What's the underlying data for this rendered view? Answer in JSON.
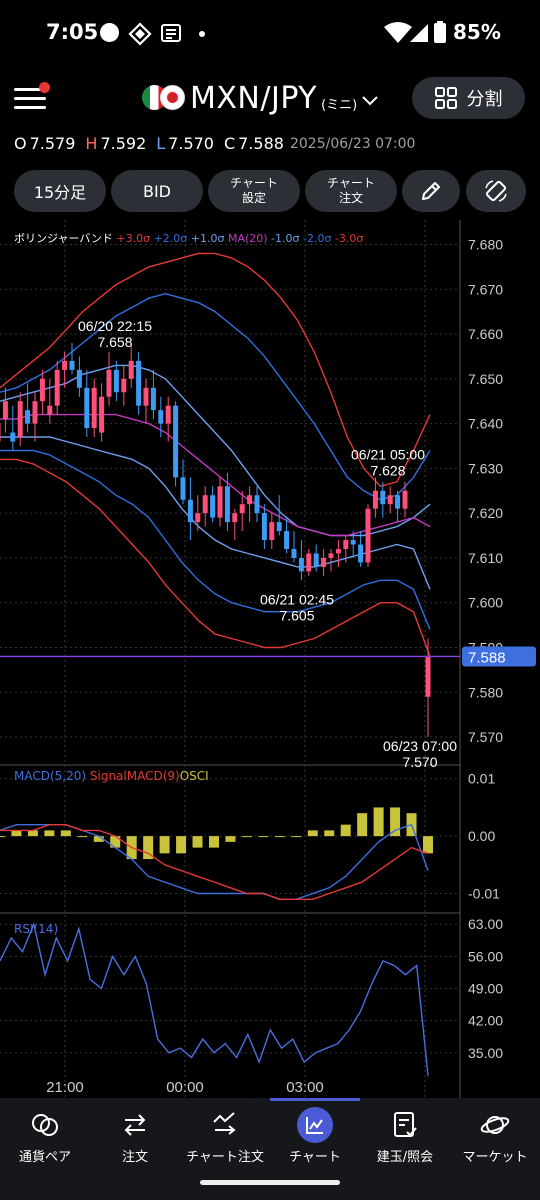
{
  "status_bar": {
    "time": "7:05",
    "battery": "85%"
  },
  "header": {
    "pair": "MXN/JPY",
    "pair_variant": "(ミニ)",
    "split_label": "分割"
  },
  "ohlc": {
    "o_key": "O",
    "o": "7.579",
    "h_key": "H",
    "h": "7.592",
    "l_key": "L",
    "l": "7.570",
    "c_key": "C",
    "c": "7.588",
    "datetime": "2025/06/23 07:00"
  },
  "toolbar": {
    "timeframe": "15分足",
    "price_type": "BID",
    "chart_settings_1": "チャート",
    "chart_settings_2": "設定",
    "chart_order_1": "チャート",
    "chart_order_2": "注文"
  },
  "colors": {
    "bb3": "#e53935",
    "bb2": "#2f6fe0",
    "bb1": "#6ea0f0",
    "ma": "#c238c2",
    "up": "#ff4f7b",
    "down": "#3d9bf5",
    "macd": "#3d6fe0",
    "signal": "#e53935",
    "osci": "#c8c33a",
    "rsi": "#4b6fe0",
    "current": "#8b3fe8",
    "badge": "#3d6fe0"
  },
  "chart_data": [
    {
      "type": "candlestick",
      "title": "ボリンジャーバンド",
      "legend": [
        "+3.0σ",
        "+2.0σ",
        "+1.0σ",
        "MA(20)",
        "-1.0σ",
        "-2.0σ",
        "-3.0σ"
      ],
      "ylim": [
        7.568,
        7.681
      ],
      "yticks": [
        "7.680",
        "7.670",
        "7.660",
        "7.650",
        "7.640",
        "7.630",
        "7.620",
        "7.610",
        "7.600",
        "7.590",
        "7.580",
        "7.570"
      ],
      "xticks": [
        "21:00",
        "00:00",
        "03:00"
      ],
      "current_price": "7.588",
      "candles": [
        [
          7.636,
          7.642,
          7.632,
          7.64
        ],
        [
          7.641,
          7.648,
          7.638,
          7.645
        ],
        [
          7.638,
          7.644,
          7.634,
          7.636
        ],
        [
          7.637,
          7.647,
          7.635,
          7.645
        ],
        [
          7.643,
          7.649,
          7.638,
          7.64
        ],
        [
          7.64,
          7.647,
          7.636,
          7.645
        ],
        [
          7.645,
          7.652,
          7.642,
          7.65
        ],
        [
          7.642,
          7.65,
          7.64,
          7.644
        ],
        [
          7.644,
          7.654,
          7.642,
          7.652
        ],
        [
          7.652,
          7.656,
          7.648,
          7.654
        ],
        [
          7.654,
          7.658,
          7.651,
          7.652
        ],
        [
          7.652,
          7.655,
          7.646,
          7.648
        ],
        [
          7.648,
          7.652,
          7.637,
          7.639
        ],
        [
          7.639,
          7.65,
          7.637,
          7.648
        ],
        [
          7.638,
          7.649,
          7.636,
          7.646
        ],
        [
          7.646,
          7.656,
          7.644,
          7.652
        ],
        [
          7.652,
          7.654,
          7.645,
          7.647
        ],
        [
          7.647,
          7.653,
          7.644,
          7.65
        ],
        [
          7.65,
          7.658,
          7.648,
          7.654
        ],
        [
          7.654,
          7.656,
          7.642,
          7.644
        ],
        [
          7.644,
          7.65,
          7.64,
          7.648
        ],
        [
          7.648,
          7.652,
          7.641,
          7.643
        ],
        [
          7.643,
          7.646,
          7.637,
          7.64
        ],
        [
          7.64,
          7.646,
          7.636,
          7.644
        ],
        [
          7.644,
          7.645,
          7.626,
          7.628
        ],
        [
          7.628,
          7.632,
          7.622,
          7.623
        ],
        [
          7.623,
          7.628,
          7.614,
          7.618
        ],
        [
          7.618,
          7.624,
          7.616,
          7.62
        ],
        [
          7.62,
          7.626,
          7.617,
          7.624
        ],
        [
          7.624,
          7.626,
          7.618,
          7.619
        ],
        [
          7.619,
          7.628,
          7.617,
          7.626
        ],
        [
          7.626,
          7.629,
          7.616,
          7.618
        ],
        [
          7.618,
          7.621,
          7.614,
          7.62
        ],
        [
          7.62,
          7.625,
          7.616,
          7.622
        ],
        [
          7.622,
          7.626,
          7.618,
          7.624
        ],
        [
          7.624,
          7.626,
          7.618,
          7.62
        ],
        [
          7.62,
          7.622,
          7.612,
          7.614
        ],
        [
          7.614,
          7.62,
          7.612,
          7.618
        ],
        [
          7.618,
          7.624,
          7.615,
          7.616
        ],
        [
          7.616,
          7.619,
          7.611,
          7.612
        ],
        [
          7.612,
          7.616,
          7.609,
          7.61
        ],
        [
          7.61,
          7.614,
          7.605,
          7.607
        ],
        [
          7.607,
          7.612,
          7.606,
          7.611
        ],
        [
          7.611,
          7.613,
          7.607,
          7.608
        ],
        [
          7.608,
          7.612,
          7.606,
          7.61
        ],
        [
          7.61,
          7.612,
          7.607,
          7.611
        ],
        [
          7.611,
          7.614,
          7.608,
          7.612
        ],
        [
          7.612,
          7.615,
          7.609,
          7.614
        ],
        [
          7.614,
          7.616,
          7.61,
          7.613
        ],
        [
          7.613,
          7.616,
          7.608,
          7.609
        ],
        [
          7.609,
          7.622,
          7.608,
          7.621
        ],
        [
          7.621,
          7.628,
          7.619,
          7.625
        ],
        [
          7.625,
          7.627,
          7.619,
          7.622
        ],
        [
          7.622,
          7.626,
          7.62,
          7.624
        ],
        [
          7.624,
          7.625,
          7.618,
          7.621
        ],
        [
          7.621,
          7.627,
          7.619,
          7.625
        ],
        [
          7.579,
          7.592,
          7.57,
          7.588
        ]
      ],
      "bands": {
        "p3": [
          7.648,
          7.651,
          7.654,
          7.657,
          7.661,
          7.665,
          7.668,
          7.671,
          7.673,
          7.675,
          7.676,
          7.677,
          7.678,
          7.678,
          7.677,
          7.675,
          7.672,
          7.668,
          7.663,
          7.656,
          7.647,
          7.637,
          7.63,
          7.626,
          7.627,
          7.634,
          7.642
        ],
        "p2": [
          7.647,
          7.648,
          7.65,
          7.652,
          7.655,
          7.658,
          7.661,
          7.664,
          7.666,
          7.668,
          7.669,
          7.668,
          7.667,
          7.665,
          7.662,
          7.659,
          7.655,
          7.65,
          7.645,
          7.64,
          7.634,
          7.628,
          7.625,
          7.623,
          7.624,
          7.628,
          7.634
        ],
        "p1": [
          7.645,
          7.646,
          7.647,
          7.648,
          7.649,
          7.651,
          7.652,
          7.653,
          7.653,
          7.652,
          7.65,
          7.646,
          7.642,
          7.638,
          7.634,
          7.629,
          7.624,
          7.62,
          7.617,
          7.616,
          7.615,
          7.615,
          7.615,
          7.616,
          7.617,
          7.619,
          7.622
        ],
        "ma": [
          7.641,
          7.641,
          7.642,
          7.642,
          7.642,
          7.642,
          7.642,
          7.642,
          7.641,
          7.64,
          7.638,
          7.635,
          7.632,
          7.629,
          7.626,
          7.623,
          7.621,
          7.619,
          7.617,
          7.616,
          7.615,
          7.615,
          7.616,
          7.617,
          7.618,
          7.619,
          7.617
        ],
        "m1": [
          7.637,
          7.637,
          7.637,
          7.637,
          7.636,
          7.635,
          7.634,
          7.633,
          7.632,
          7.63,
          7.626,
          7.621,
          7.617,
          7.614,
          7.612,
          7.611,
          7.61,
          7.609,
          7.608,
          7.608,
          7.609,
          7.61,
          7.611,
          7.612,
          7.613,
          7.612,
          7.603
        ],
        "m2": [
          7.634,
          7.634,
          7.634,
          7.633,
          7.631,
          7.629,
          7.627,
          7.624,
          7.622,
          7.619,
          7.614,
          7.609,
          7.605,
          7.602,
          7.6,
          7.599,
          7.598,
          7.598,
          7.598,
          7.599,
          7.6,
          7.602,
          7.604,
          7.605,
          7.605,
          7.603,
          7.594
        ],
        "m3": [
          7.632,
          7.632,
          7.631,
          7.629,
          7.627,
          7.624,
          7.621,
          7.617,
          7.613,
          7.609,
          7.604,
          7.6,
          7.596,
          7.593,
          7.592,
          7.591,
          7.59,
          7.59,
          7.591,
          7.592,
          7.594,
          7.596,
          7.598,
          7.6,
          7.6,
          7.598,
          7.588
        ]
      },
      "annotations": [
        {
          "label_time": "06/20 22:15",
          "label_price": "7.658"
        },
        {
          "label_time": "06/21 05:00",
          "label_price": "7.628"
        },
        {
          "label_time": "06/21 02:45",
          "label_price": "7.605"
        },
        {
          "label_time": "06/23 07:00",
          "label_price": "7.570"
        }
      ]
    },
    {
      "type": "line",
      "title": "MACD",
      "legend": [
        "MACD(5,20)",
        "SignalMACD(9)",
        "OSCI"
      ],
      "ylim": [
        -0.012,
        0.011
      ],
      "yticks": [
        "0.01",
        "0.00",
        "-0.01"
      ],
      "macd": [
        0.001,
        0.002,
        0.002,
        0.002,
        0.002,
        0.001,
        0.0,
        -0.002,
        -0.004,
        -0.007,
        -0.008,
        -0.009,
        -0.01,
        -0.01,
        -0.01,
        -0.01,
        -0.01,
        -0.011,
        -0.011,
        -0.01,
        -0.009,
        -0.007,
        -0.004,
        -0.001,
        0.001,
        0.002,
        -0.006
      ],
      "signal": [
        0.001,
        0.001,
        0.001,
        0.002,
        0.002,
        0.001,
        0.001,
        0.0,
        -0.002,
        -0.003,
        -0.005,
        -0.006,
        -0.007,
        -0.008,
        -0.009,
        -0.01,
        -0.01,
        -0.011,
        -0.011,
        -0.011,
        -0.01,
        -0.009,
        -0.008,
        -0.006,
        -0.004,
        -0.002,
        -0.003
      ],
      "osci": [
        0.0,
        0.001,
        0.001,
        0.001,
        0.001,
        0.0,
        -0.001,
        -0.002,
        -0.004,
        -0.004,
        -0.003,
        -0.003,
        -0.002,
        -0.002,
        -0.001,
        0.0,
        0.0,
        0.0,
        0.0,
        0.001,
        0.001,
        0.002,
        0.004,
        0.005,
        0.005,
        0.004,
        -0.003
      ]
    },
    {
      "type": "line",
      "title": "RSI",
      "legend": [
        "RSI(14)"
      ],
      "ylim": [
        28,
        65
      ],
      "yticks": [
        "63.00",
        "56.00",
        "49.00",
        "42.00",
        "35.00"
      ],
      "values": [
        55,
        60,
        57,
        63,
        52,
        60,
        55,
        62,
        51,
        49,
        56,
        52,
        56,
        50,
        38,
        35,
        36,
        34,
        38,
        35,
        37,
        34,
        39,
        33,
        40,
        36,
        38,
        33,
        35,
        36,
        37,
        40,
        44,
        50,
        55,
        54,
        52,
        54,
        30
      ]
    }
  ],
  "bottom_nav": {
    "items": [
      {
        "label": "通貨ペア"
      },
      {
        "label": "注文"
      },
      {
        "label": "チャート注文"
      },
      {
        "label": "チャート"
      },
      {
        "label": "建玉/照会"
      },
      {
        "label": "マーケット"
      }
    ]
  }
}
